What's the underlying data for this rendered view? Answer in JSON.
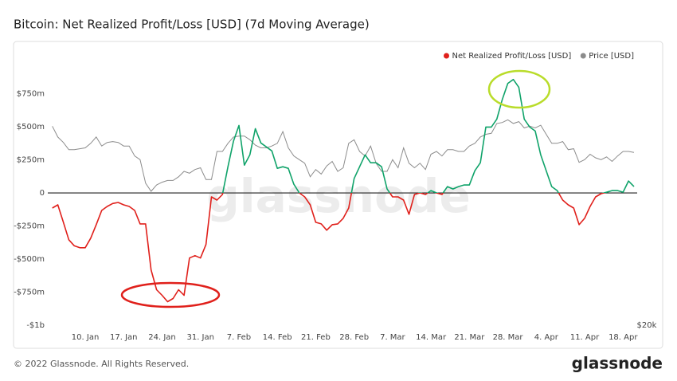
{
  "chart_data": {
    "type": "line",
    "title": "Bitcoin: Net Realized Profit/Loss [USD] (7d Moving Average)",
    "watermark": "glassnode",
    "categories": [
      null,
      null,
      null,
      null,
      null,
      null,
      "10. Jan",
      null,
      null,
      null,
      null,
      null,
      null,
      "17. Jan",
      null,
      null,
      null,
      null,
      null,
      null,
      "24. Jan",
      null,
      null,
      null,
      null,
      null,
      null,
      "31. Jan",
      null,
      null,
      null,
      null,
      null,
      null,
      "7. Feb",
      null,
      null,
      null,
      null,
      null,
      null,
      "14. Feb",
      null,
      null,
      null,
      null,
      null,
      null,
      "21. Feb",
      null,
      null,
      null,
      null,
      null,
      null,
      "28. Feb",
      null,
      null,
      null,
      null,
      null,
      null,
      "7. Mar",
      null,
      null,
      null,
      null,
      null,
      null,
      "14. Mar",
      null,
      null,
      null,
      null,
      null,
      null,
      "21. Mar",
      null,
      null,
      null,
      null,
      null,
      null,
      "28. Mar",
      null,
      null,
      null,
      null,
      null,
      null,
      "4. Apr",
      null,
      null,
      null,
      null,
      null,
      null,
      "11. Apr",
      null,
      null,
      null,
      null,
      null,
      null,
      "18. Apr",
      null,
      null
    ],
    "series": [
      {
        "name": "Net Realized Profit/Loss [USD]",
        "color": "#e0201b",
        "positive_color": "#10a36a",
        "values": [
          -114,
          -90,
          -220,
          -354,
          -400,
          -414,
          -414,
          -342,
          -240,
          -132,
          -102,
          -80,
          -72,
          -90,
          -102,
          -132,
          -234,
          -234,
          -582,
          -732,
          -774,
          -822,
          -798,
          -732,
          -774,
          -492,
          -474,
          -492,
          -390,
          -30,
          -54,
          -12,
          198,
          390,
          510,
          210,
          288,
          486,
          378,
          348,
          318,
          186,
          198,
          186,
          66,
          0,
          -30,
          -90,
          -222,
          -234,
          -282,
          -240,
          -234,
          -192,
          -114,
          108,
          198,
          288,
          228,
          228,
          198,
          30,
          -30,
          -30,
          -54,
          -162,
          -12,
          0,
          -12,
          18,
          0,
          -12,
          48,
          30,
          48,
          60,
          60,
          168,
          228,
          498,
          498,
          558,
          708,
          828,
          858,
          798,
          558,
          498,
          468,
          288,
          168,
          48,
          18,
          -54,
          -90,
          -114,
          -240,
          -192,
          -102,
          -30,
          -6,
          6,
          18,
          18,
          6,
          90,
          48
        ]
      },
      {
        "name": "Price [USD]",
        "color": "#8c8c8c",
        "axis": "y2",
        "values": [
          42000,
          40800,
          40200,
          39400,
          39400,
          39500,
          39600,
          40100,
          40800,
          39800,
          40200,
          40300,
          40200,
          39800,
          39800,
          38700,
          38300,
          35700,
          34800,
          35500,
          35800,
          36000,
          36000,
          36400,
          37000,
          36800,
          37200,
          37400,
          36100,
          36100,
          39200,
          39200,
          40100,
          40800,
          40900,
          40900,
          40500,
          39900,
          39600,
          39600,
          39800,
          40100,
          41400,
          39600,
          38700,
          38300,
          37900,
          36400,
          37200,
          36700,
          37600,
          38100,
          37000,
          37400,
          40100,
          40500,
          39200,
          38700,
          39800,
          37900,
          37000,
          37000,
          38300,
          37400,
          39600,
          37900,
          37400,
          37900,
          37200,
          38900,
          39200,
          38700,
          39400,
          39400,
          39200,
          39200,
          39800,
          40100,
          40800,
          41100,
          41200,
          42300,
          42400,
          42700,
          42300,
          42500,
          41800,
          42000,
          41800,
          42100,
          41100,
          40100,
          40100,
          40300,
          39400,
          39500,
          38000,
          38300,
          38900,
          38500,
          38300,
          38600,
          38100,
          38700,
          39200,
          39200,
          39100
        ]
      }
    ],
    "ylim": [
      -1000,
      1100
    ],
    "yticks": [
      {
        "value": -1000,
        "label": "-$1b"
      },
      {
        "value": -750,
        "label": "-$750m"
      },
      {
        "value": -500,
        "label": "-$500m"
      },
      {
        "value": -250,
        "label": "-$250m"
      },
      0,
      {
        "value": 250,
        "label": "$250m"
      },
      {
        "value": 500,
        "label": "$500m"
      },
      {
        "value": 750,
        "label": "$750m"
      }
    ],
    "y2lim": [
      20000,
      50700
    ],
    "y2ticks": [
      {
        "value": 20000,
        "label": "$20k"
      }
    ],
    "zero_line": true,
    "legend": "top-right"
  },
  "footer": {
    "copyright": "© 2022 Glassnode. All Rights Reserved.",
    "brand": "glassnode"
  }
}
